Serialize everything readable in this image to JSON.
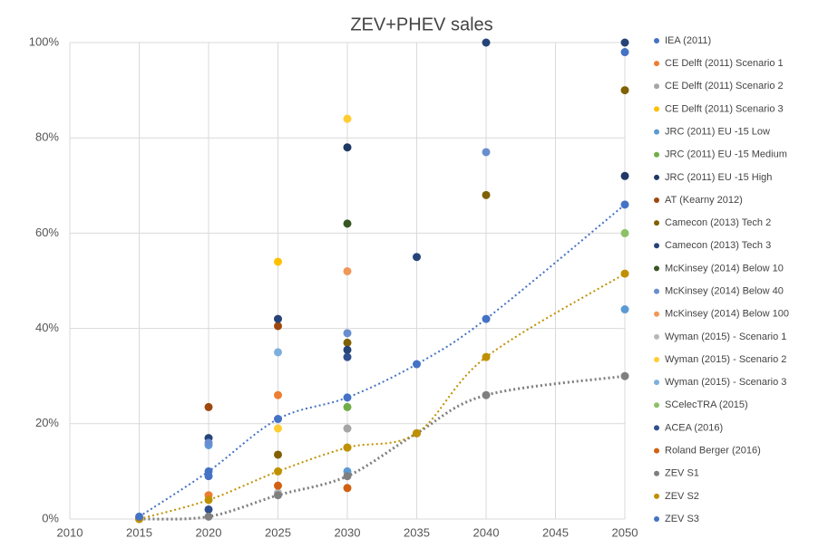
{
  "chart_data": {
    "type": "scatter",
    "title": "ZEV+PHEV sales",
    "xlim": [
      2010,
      2050
    ],
    "xticks": [
      2010,
      2015,
      2020,
      2025,
      2030,
      2035,
      2040,
      2045,
      2050
    ],
    "ylim": [
      0,
      100
    ],
    "yticks": [
      {
        "value": 0,
        "label": "0%"
      },
      {
        "value": 20,
        "label": "20%"
      },
      {
        "value": 40,
        "label": "40%"
      },
      {
        "value": 60,
        "label": "60%"
      },
      {
        "value": 80,
        "label": "80%"
      },
      {
        "value": 100,
        "label": "100%"
      }
    ],
    "grid": true,
    "legend": "right",
    "series": [
      {
        "name": "IEA (2011)",
        "color": "#4472c4",
        "x": [
          2020,
          2050
        ],
        "values": [
          9,
          98
        ]
      },
      {
        "name": "CE Delft (2011) Scenario 1",
        "color": "#ed7d31",
        "x": [
          2020,
          2025
        ],
        "values": [
          5,
          26
        ]
      },
      {
        "name": "CE Delft (2011) Scenario 2",
        "color": "#a5a5a5",
        "x": [
          2030
        ],
        "values": [
          19
        ]
      },
      {
        "name": "CE Delft (2011) Scenario 3",
        "color": "#ffc000",
        "x": [
          2025
        ],
        "values": [
          54
        ]
      },
      {
        "name": "JRC (2011) EU -15 Low",
        "color": "#5b9bd5",
        "x": [
          2020,
          2030,
          2050
        ],
        "values": [
          15.5,
          10,
          44
        ]
      },
      {
        "name": "JRC (2011) EU -15 Medium",
        "color": "#70ad47",
        "x": [
          2030
        ],
        "values": [
          23.5
        ]
      },
      {
        "name": "JRC (2011) EU -15 High",
        "color": "#1f3864",
        "x": [
          2030,
          2050
        ],
        "values": [
          78,
          72
        ]
      },
      {
        "name": "AT (Kearny 2012)",
        "color": "#9e480e",
        "x": [
          2020,
          2025
        ],
        "values": [
          23.5,
          40.5
        ]
      },
      {
        "name": "Camecon (2013) Tech 2",
        "color": "#806000",
        "x": [
          2025,
          2030,
          2040,
          2050
        ],
        "values": [
          13.5,
          37,
          68,
          90
        ]
      },
      {
        "name": "Camecon (2013) Tech 3",
        "color": "#264478",
        "x": [
          2020,
          2025,
          2030,
          2035,
          2040,
          2050
        ],
        "values": [
          17,
          42,
          35.5,
          55,
          100,
          100
        ]
      },
      {
        "name": "McKinsey  (2014) Below 10",
        "color": "#375623",
        "x": [
          2030
        ],
        "values": [
          62
        ]
      },
      {
        "name": "McKinsey  (2014) Below 40",
        "color": "#698ed0",
        "x": [
          2020,
          2030,
          2040
        ],
        "values": [
          16,
          39,
          77
        ]
      },
      {
        "name": "McKinsey  (2014) Below 100",
        "color": "#f1975a",
        "x": [
          2030
        ],
        "values": [
          52
        ]
      },
      {
        "name": "Wyman (2015) - Scenario 1",
        "color": "#b7b7b7",
        "x": [
          2025
        ],
        "values": [
          5.5
        ]
      },
      {
        "name": "Wyman (2015) - Scenario 2",
        "color": "#ffcd33",
        "x": [
          2025,
          2030
        ],
        "values": [
          19,
          84
        ]
      },
      {
        "name": "Wyman (2015) - Scenario 3",
        "color": "#7cafdd",
        "x": [
          2025
        ],
        "values": [
          35
        ]
      },
      {
        "name": "SCelecTRA (2015)",
        "color": "#8cc168",
        "x": [
          2030,
          2050
        ],
        "values": [
          15,
          60
        ]
      },
      {
        "name": "ACEA (2016)",
        "color": "#2f4f8f",
        "x": [
          2020,
          2030
        ],
        "values": [
          2,
          34
        ]
      },
      {
        "name": "Roland Berger (2016)",
        "color": "#d26012",
        "x": [
          2025,
          2030
        ],
        "values": [
          7,
          6.5
        ]
      },
      {
        "name": "ZEV S1",
        "color": "#7f7f7f",
        "trendline": true,
        "x": [
          2015,
          2020,
          2025,
          2030,
          2035,
          2040,
          2050
        ],
        "values": [
          0,
          0.5,
          5,
          9,
          18,
          26,
          30
        ]
      },
      {
        "name": "ZEV S2",
        "color": "#bf9000",
        "trendline": true,
        "x": [
          2015,
          2020,
          2025,
          2030,
          2035,
          2040,
          2050
        ],
        "values": [
          0,
          4,
          10,
          15,
          18,
          34,
          51.5
        ]
      },
      {
        "name": "ZEV S3",
        "color": "#4472c4",
        "trendline": true,
        "x": [
          2015,
          2020,
          2025,
          2030,
          2035,
          2040,
          2050
        ],
        "values": [
          0.5,
          10,
          21,
          25.5,
          32.5,
          42,
          66
        ]
      }
    ]
  }
}
